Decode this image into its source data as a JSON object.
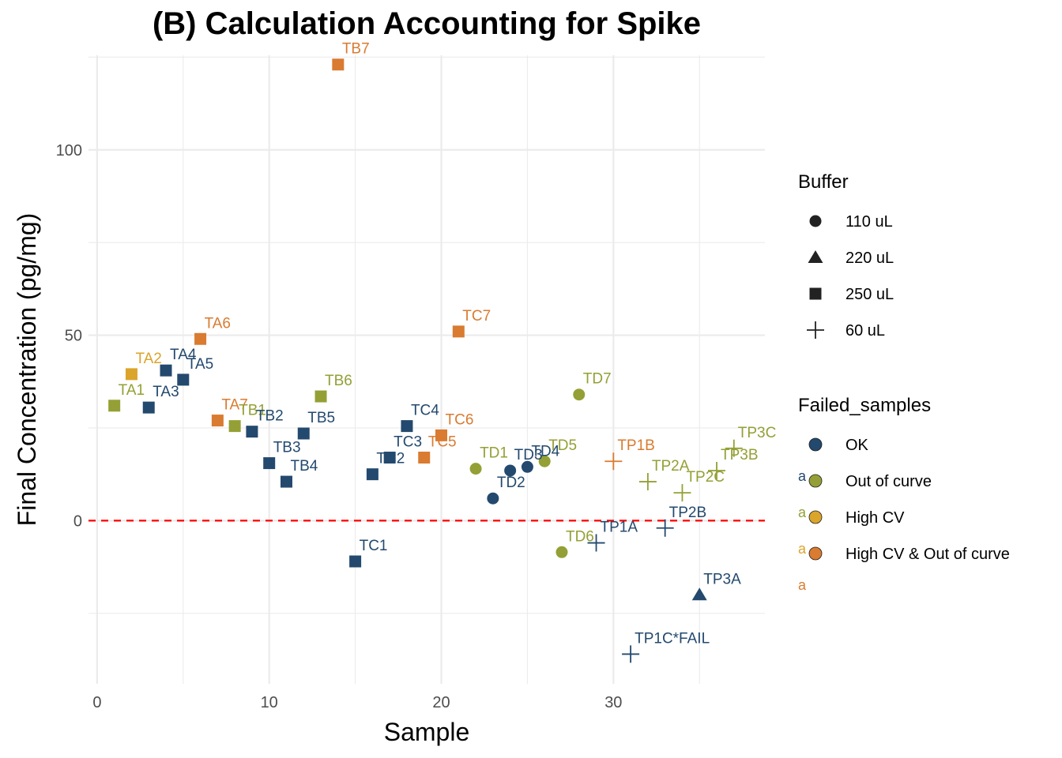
{
  "chart_data": {
    "type": "scatter",
    "title": "(B) Calculation Accounting for Spike",
    "xlabel": "Sample",
    "ylabel": "Final Concentration (pg/mg)",
    "xlim": [
      -0.5,
      38.8
    ],
    "ylim": [
      -44,
      125.5
    ],
    "xticks": [
      0,
      10,
      20,
      30
    ],
    "yticks": [
      0,
      50,
      100
    ],
    "grid": true,
    "reference_line": {
      "y": 0,
      "style": "dashed",
      "color": "#ff0000"
    },
    "colors": {
      "OK": "#23496e",
      "Out of curve": "#94a035",
      "High CV": "#dba42b",
      "High CV & Out of curve": "#d97b30"
    },
    "legend_buffer": {
      "title": "Buffer",
      "entries": [
        {
          "label": "110 uL",
          "shape": "circle"
        },
        {
          "label": "220 uL",
          "shape": "triangle"
        },
        {
          "label": "250 uL",
          "shape": "square"
        },
        {
          "label": "60 uL",
          "shape": "plus"
        }
      ]
    },
    "legend_failed": {
      "title": "Failed_samples",
      "entries": [
        {
          "label": "OK",
          "status": "OK"
        },
        {
          "label": "Out of curve",
          "status": "Out of curve"
        },
        {
          "label": "High CV",
          "status": "High CV"
        },
        {
          "label": "High CV & Out of curve",
          "status": "High CV & Out of curve"
        }
      ],
      "key_text": "a"
    },
    "points": [
      {
        "x": 1,
        "y": 31,
        "label": "TA1",
        "buffer": "250 uL",
        "status": "Out of curve"
      },
      {
        "x": 2,
        "y": 39.5,
        "label": "TA2",
        "buffer": "250 uL",
        "status": "High CV"
      },
      {
        "x": 3,
        "y": 30.5,
        "label": "TA3",
        "buffer": "250 uL",
        "status": "OK"
      },
      {
        "x": 4,
        "y": 40.5,
        "label": "TA4",
        "buffer": "250 uL",
        "status": "OK"
      },
      {
        "x": 5,
        "y": 38,
        "label": "TA5",
        "buffer": "250 uL",
        "status": "OK"
      },
      {
        "x": 6,
        "y": 49,
        "label": "TA6",
        "buffer": "250 uL",
        "status": "High CV & Out of curve"
      },
      {
        "x": 7,
        "y": 27,
        "label": "TA7",
        "buffer": "250 uL",
        "status": "High CV & Out of curve"
      },
      {
        "x": 8,
        "y": 25.5,
        "label": "TB1",
        "buffer": "250 uL",
        "status": "Out of curve"
      },
      {
        "x": 9,
        "y": 24,
        "label": "TB2",
        "buffer": "250 uL",
        "status": "OK"
      },
      {
        "x": 10,
        "y": 15.5,
        "label": "TB3",
        "buffer": "250 uL",
        "status": "OK"
      },
      {
        "x": 11,
        "y": 10.5,
        "label": "TB4",
        "buffer": "250 uL",
        "status": "OK"
      },
      {
        "x": 12,
        "y": 23.5,
        "label": "TB5",
        "buffer": "250 uL",
        "status": "OK"
      },
      {
        "x": 13,
        "y": 33.5,
        "label": "TB6",
        "buffer": "250 uL",
        "status": "Out of curve"
      },
      {
        "x": 14,
        "y": 123,
        "label": "TB7",
        "buffer": "250 uL",
        "status": "High CV & Out of curve"
      },
      {
        "x": 15,
        "y": -11,
        "label": "TC1",
        "buffer": "250 uL",
        "status": "OK"
      },
      {
        "x": 16,
        "y": 12.5,
        "label": "TC2",
        "buffer": "250 uL",
        "status": "OK"
      },
      {
        "x": 17,
        "y": 17,
        "label": "TC3",
        "buffer": "250 uL",
        "status": "OK"
      },
      {
        "x": 18,
        "y": 25.5,
        "label": "TC4",
        "buffer": "250 uL",
        "status": "OK"
      },
      {
        "x": 19,
        "y": 17,
        "label": "TC5",
        "buffer": "250 uL",
        "status": "High CV & Out of curve"
      },
      {
        "x": 20,
        "y": 23,
        "label": "TC6",
        "buffer": "250 uL",
        "status": "High CV & Out of curve"
      },
      {
        "x": 21,
        "y": 51,
        "label": "TC7",
        "buffer": "250 uL",
        "status": "High CV & Out of curve"
      },
      {
        "x": 22,
        "y": 14,
        "label": "TD1",
        "buffer": "110 uL",
        "status": "Out of curve"
      },
      {
        "x": 23,
        "y": 6,
        "label": "TD2",
        "buffer": "110 uL",
        "status": "OK"
      },
      {
        "x": 24,
        "y": 13.5,
        "label": "TD3",
        "buffer": "110 uL",
        "status": "OK"
      },
      {
        "x": 25,
        "y": 14.5,
        "label": "TD4",
        "buffer": "110 uL",
        "status": "OK"
      },
      {
        "x": 26,
        "y": 16,
        "label": "TD5",
        "buffer": "110 uL",
        "status": "Out of curve"
      },
      {
        "x": 27,
        "y": -8.5,
        "label": "TD6",
        "buffer": "110 uL",
        "status": "Out of curve"
      },
      {
        "x": 28,
        "y": 34,
        "label": "TD7",
        "buffer": "110 uL",
        "status": "Out of curve"
      },
      {
        "x": 29,
        "y": -6,
        "label": "TP1A",
        "buffer": "60 uL",
        "status": "OK"
      },
      {
        "x": 30,
        "y": 16,
        "label": "TP1B",
        "buffer": "60 uL",
        "status": "High CV & Out of curve"
      },
      {
        "x": 31,
        "y": -36,
        "label": "TP1C*FAIL",
        "buffer": "60 uL",
        "status": "OK"
      },
      {
        "x": 32,
        "y": 10.5,
        "label": "TP2A",
        "buffer": "60 uL",
        "status": "Out of curve"
      },
      {
        "x": 33,
        "y": -2,
        "label": "TP2B",
        "buffer": "60 uL",
        "status": "OK"
      },
      {
        "x": 34,
        "y": 7.5,
        "label": "TP2C",
        "buffer": "60 uL",
        "status": "Out of curve"
      },
      {
        "x": 35,
        "y": -20,
        "label": "TP3A",
        "buffer": "220 uL",
        "status": "OK"
      },
      {
        "x": 36,
        "y": 13.5,
        "label": "TP3B",
        "buffer": "60 uL",
        "status": "Out of curve"
      },
      {
        "x": 37,
        "y": 19.5,
        "label": "TP3C",
        "buffer": "60 uL",
        "status": "Out of curve"
      }
    ]
  }
}
